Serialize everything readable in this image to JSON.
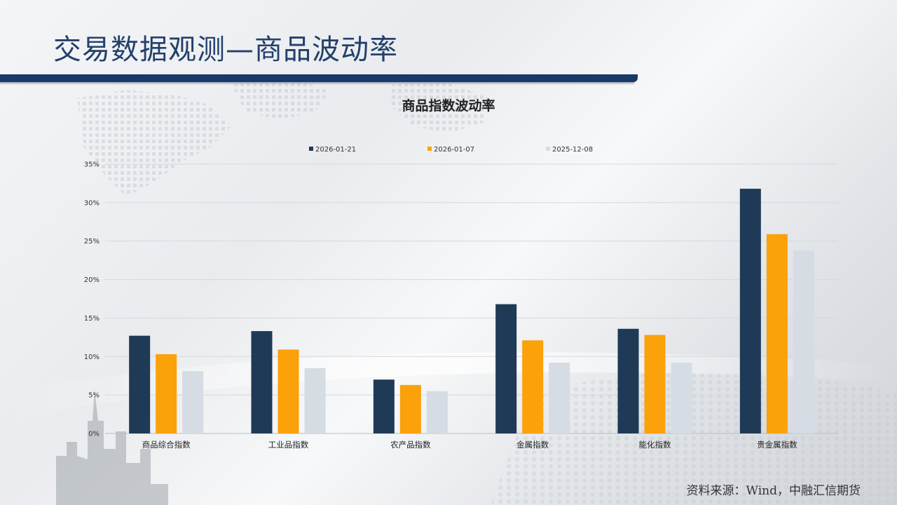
{
  "slide": {
    "title": "交易数据观测—商品波动率",
    "source": "资料来源：Wind，中融汇信期货"
  },
  "colors": {
    "title": "#23406b",
    "title_bar": "#1a3868",
    "series": [
      "#1f3a56",
      "#fba10a",
      "#d6dce4"
    ]
  },
  "chart_data": {
    "type": "bar",
    "title": "商品指数波动率",
    "categories": [
      "商品综合指数",
      "工业品指数",
      "农产品指数",
      "金属指数",
      "能化指数",
      "贵金属指数"
    ],
    "series": [
      {
        "name": "2026-01-21",
        "values": [
          12.7,
          13.3,
          7.0,
          16.8,
          13.6,
          31.8
        ]
      },
      {
        "name": "2026-01-07",
        "values": [
          10.3,
          10.9,
          6.3,
          12.1,
          12.8,
          25.9
        ]
      },
      {
        "name": "2025-12-08",
        "values": [
          8.1,
          8.5,
          5.5,
          9.2,
          9.2,
          23.8
        ]
      }
    ],
    "ylim": [
      0,
      35
    ],
    "yticks": [
      "0%",
      "5%",
      "10%",
      "15%",
      "20%",
      "25%",
      "30%",
      "35%"
    ],
    "grid": true,
    "legend_position": "top"
  }
}
